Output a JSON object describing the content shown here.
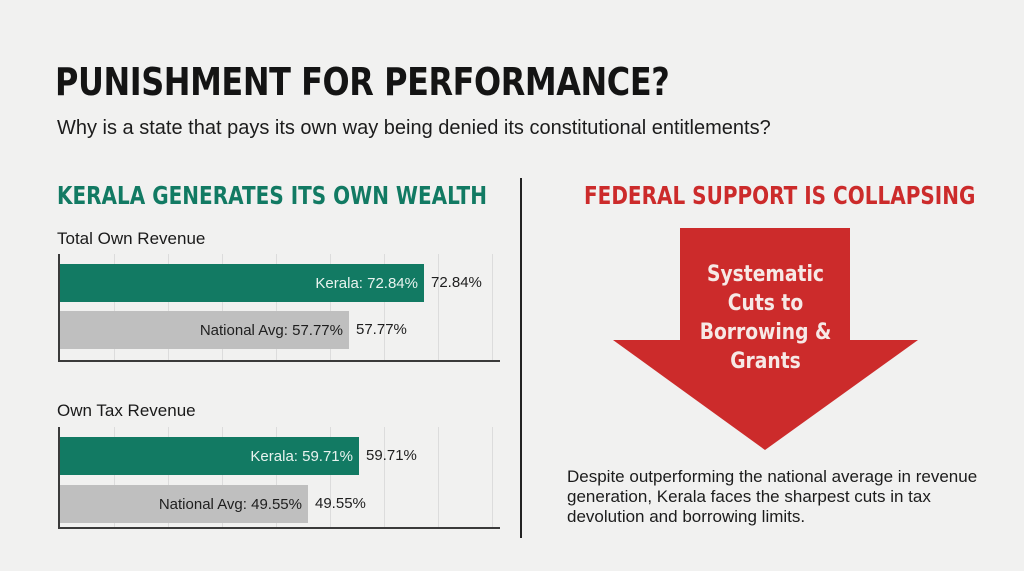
{
  "title": "PUNISHMENT FOR PERFORMANCE?",
  "subtitle": "Why is a state that pays its own way being denied its constitutional entitlements?",
  "left_heading": "KERALA GENERATES ITS OWN WEALTH",
  "right_heading": "FEDERAL SUPPORT IS COLLAPSING",
  "arrow_lines": [
    "Systematic",
    "Cuts to",
    "Borrowing &",
    "Grants"
  ],
  "body_text": "Despite outperforming the national average in revenue generation, Kerala faces the sharpest cuts in tax devolution and borrowing limits.",
  "colors": {
    "kerala": "#127a63",
    "national": "#bfbfbf",
    "alert": "#cc2b2b"
  },
  "chart_data": [
    {
      "type": "bar",
      "orientation": "horizontal",
      "title": "Total Own Revenue",
      "categories": [
        "Kerala",
        "National Avg"
      ],
      "values": [
        72.84,
        57.77
      ],
      "inner_labels": [
        "Kerala: 72.84%",
        "National Avg: 57.77%"
      ],
      "value_labels": [
        "72.84%",
        "57.77%"
      ],
      "unit": "%",
      "xlim": [
        0,
        100
      ],
      "grid": true
    },
    {
      "type": "bar",
      "orientation": "horizontal",
      "title": "Own Tax Revenue",
      "categories": [
        "Kerala",
        "National Avg"
      ],
      "values": [
        59.71,
        49.55
      ],
      "inner_labels": [
        "Kerala: 59.71%",
        "National Avg: 49.55%"
      ],
      "value_labels": [
        "59.71%",
        "49.55%"
      ],
      "unit": "%",
      "xlim": [
        0,
        100
      ],
      "grid": true
    }
  ]
}
